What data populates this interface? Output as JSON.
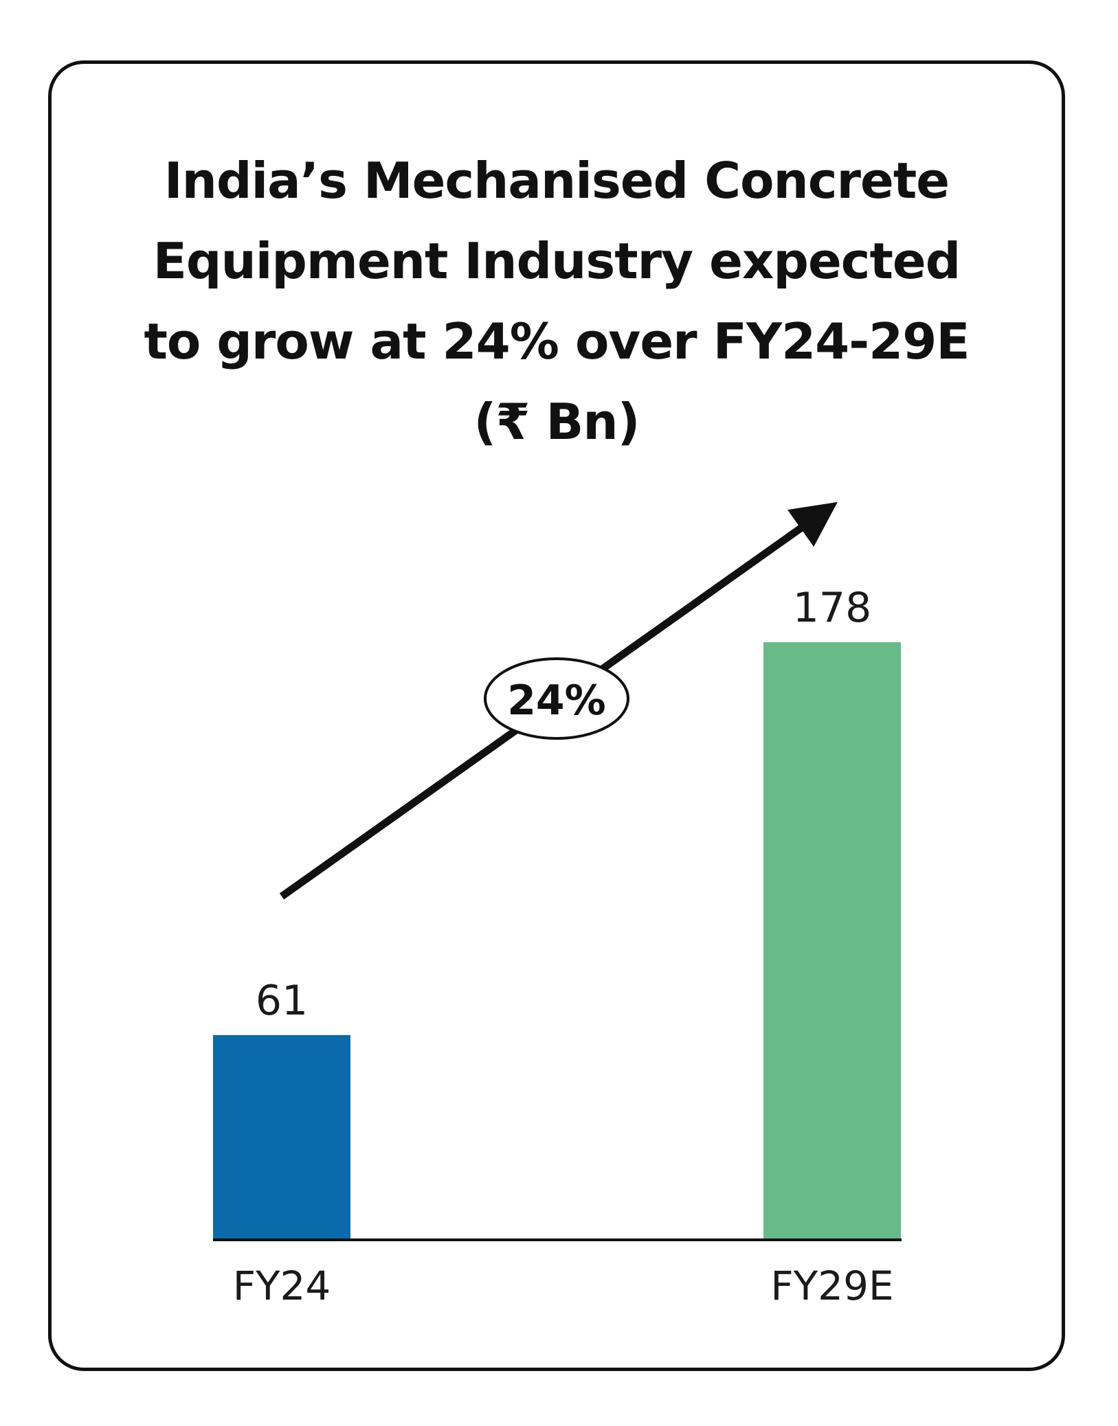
{
  "chart_data": {
    "type": "bar",
    "title_lines": [
      "India’s Mechanised Concrete",
      "Equipment Industry expected",
      "to grow at 24% over FY24-29E",
      "(₹ Bn)"
    ],
    "categories": [
      "FY24",
      "FY29E"
    ],
    "values": [
      61,
      178
    ],
    "value_labels": [
      "61",
      "178"
    ],
    "series_colors": [
      "#0a6aaa",
      "#66bb88"
    ],
    "annotation": {
      "text": "24%",
      "type": "growth-arrow"
    },
    "ylim": [
      0,
      178
    ],
    "xlabel": "",
    "ylabel": "",
    "grid": false
  }
}
